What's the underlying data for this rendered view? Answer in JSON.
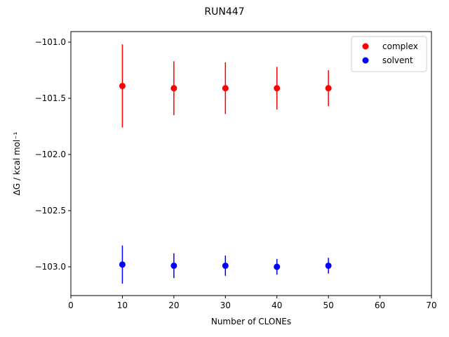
{
  "chart_data": {
    "type": "errorbar-scatter",
    "title": "RUN447",
    "x_label": "Number of CLONEs",
    "y_label": "ΔG / kcal mol⁻¹",
    "xlim": [
      0,
      70
    ],
    "xticks": [
      0,
      10,
      20,
      30,
      40,
      50,
      60,
      70
    ],
    "ylim": [
      -103.256,
      -100.906
    ],
    "yticks": [
      {
        "value": -101.0,
        "label": "−101.0"
      },
      {
        "value": -101.5,
        "label": "−101.5"
      },
      {
        "value": -102.0,
        "label": "−102.0"
      },
      {
        "value": -102.5,
        "label": "−102.5"
      },
      {
        "value": -103.0,
        "label": "−103.0"
      }
    ],
    "legend": "upper right",
    "series": [
      {
        "name": "complex",
        "color": "#ff0000",
        "x": [
          10,
          20,
          30,
          40,
          50
        ],
        "values": [
          -101.39,
          -101.41,
          -101.41,
          -101.41,
          -101.41
        ],
        "errors": [
          0.37,
          0.24,
          0.23,
          0.19,
          0.16
        ]
      },
      {
        "name": "solvent",
        "color": "#0000ff",
        "x": [
          10,
          20,
          30,
          40,
          50
        ],
        "values": [
          -102.98,
          -102.99,
          -102.99,
          -103.0,
          -102.99
        ],
        "errors": [
          0.17,
          0.11,
          0.09,
          0.07,
          0.07
        ]
      }
    ]
  }
}
